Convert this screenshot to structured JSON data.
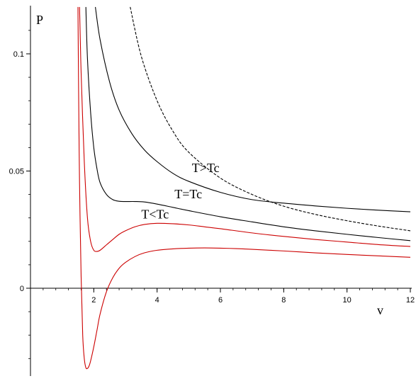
{
  "chart_data": {
    "type": "line",
    "xlabel": "v",
    "ylabel": "P",
    "xlim": [
      0,
      12
    ],
    "ylim": [
      -0.037,
      0.12
    ],
    "x_ticks": [
      {
        "value": 2,
        "label": "2"
      },
      {
        "value": 4,
        "label": "4"
      },
      {
        "value": 6,
        "label": "6"
      },
      {
        "value": 8,
        "label": "8"
      },
      {
        "value": 10,
        "label": "10"
      },
      {
        "value": 12,
        "label": "12"
      }
    ],
    "y_ticks": [
      {
        "value": 0,
        "label": "0"
      },
      {
        "value": 0.05,
        "label": "0.05"
      },
      {
        "value": 0.1,
        "label": "0.1"
      }
    ],
    "grid": false,
    "series": [
      {
        "color": "#000000",
        "style": "dashed",
        "x": [
          3.15,
          3.5,
          4,
          4.5,
          5,
          6,
          7,
          8,
          9,
          10,
          11,
          12
        ],
        "y": [
          0.12,
          0.099,
          0.08,
          0.067,
          0.058,
          0.047,
          0.04,
          0.035,
          0.0315,
          0.0288,
          0.0265,
          0.0245
        ]
      },
      {
        "color": "#000000",
        "style": "solid",
        "x": [
          2.05,
          2.2,
          2.5,
          2.8,
          3.2,
          3.6,
          4,
          4.5,
          5,
          6,
          7,
          8,
          9,
          10,
          11,
          12
        ],
        "y": [
          0.12,
          0.106,
          0.088,
          0.076,
          0.066,
          0.059,
          0.054,
          0.049,
          0.0456,
          0.0409,
          0.0378,
          0.0363,
          0.0351,
          0.0341,
          0.0333,
          0.0326
        ]
      },
      {
        "color": "#000000",
        "style": "solid",
        "x": [
          1.75,
          1.8,
          1.9,
          2.0,
          2.1,
          2.2,
          2.4,
          2.6,
          2.8,
          3.0,
          3.3,
          3.6,
          4.0,
          4.5,
          5,
          6,
          7,
          8,
          9,
          10,
          11,
          12
        ],
        "y": [
          0.12,
          0.098,
          0.075,
          0.06,
          0.051,
          0.045,
          0.04,
          0.0378,
          0.0371,
          0.037,
          0.037,
          0.0368,
          0.0359,
          0.0345,
          0.0331,
          0.0305,
          0.0283,
          0.0262,
          0.0245,
          0.023,
          0.0216,
          0.0203
        ]
      },
      {
        "color": "#cc0000",
        "style": "solid",
        "x": [
          1.55,
          1.6,
          1.7,
          1.8,
          1.9,
          2.0,
          2.1,
          2.2,
          2.4,
          2.6,
          2.8,
          3.0,
          3.3,
          3.6,
          4.0,
          4.5,
          5.0,
          5.5,
          6,
          7,
          8,
          9,
          10,
          11,
          12
        ],
        "y": [
          0.12,
          0.092,
          0.054,
          0.03,
          0.02,
          0.0162,
          0.0157,
          0.0162,
          0.0185,
          0.0208,
          0.023,
          0.0245,
          0.0262,
          0.0272,
          0.0277,
          0.0275,
          0.027,
          0.0262,
          0.0254,
          0.0236,
          0.0221,
          0.0208,
          0.0197,
          0.0186,
          0.0178
        ]
      },
      {
        "color": "#cc0000",
        "style": "solid",
        "x": [
          1.5,
          1.52,
          1.55,
          1.6,
          1.65,
          1.7,
          1.75,
          1.8,
          1.85,
          1.9,
          2.0,
          2.1,
          2.2,
          2.4,
          2.6,
          2.8,
          3.0,
          3.3,
          3.6,
          4.0,
          4.5,
          5.0,
          5.5,
          6,
          6.5,
          7,
          8,
          9,
          10,
          11,
          12
        ],
        "y": [
          0.12,
          0.085,
          0.045,
          0.005,
          -0.02,
          -0.03,
          -0.0339,
          -0.0342,
          -0.0332,
          -0.031,
          -0.025,
          -0.018,
          -0.011,
          -0.0015,
          0.0045,
          0.0085,
          0.011,
          0.0135,
          0.0151,
          0.0162,
          0.0168,
          0.0171,
          0.0172,
          0.0171,
          0.0169,
          0.0166,
          0.0159,
          0.0151,
          0.0144,
          0.0138,
          0.0132
        ]
      }
    ],
    "annotations": [
      {
        "text": "T>Tc",
        "x": 5.1,
        "y": 0.0495
      },
      {
        "text": "T=Tc",
        "x": 4.55,
        "y": 0.0384
      },
      {
        "text": "T<Tc",
        "x": 3.5,
        "y": 0.0298
      }
    ]
  }
}
